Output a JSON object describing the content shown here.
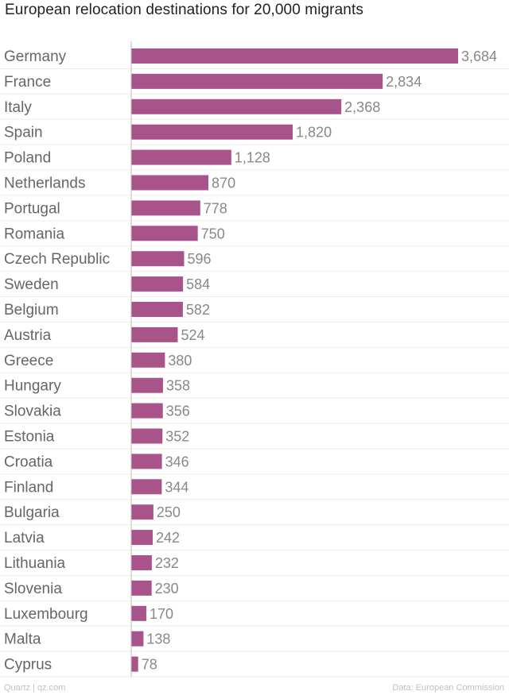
{
  "chart_data": {
    "type": "bar",
    "orientation": "horizontal",
    "title": "European relocation destinations for 20,000 migrants",
    "xlabel": "",
    "ylabel": "",
    "xlim": [
      0,
      3684
    ],
    "grid": true,
    "bar_color": "#a8538a",
    "categories": [
      "Germany",
      "France",
      "Italy",
      "Spain",
      "Poland",
      "Netherlands",
      "Portugal",
      "Romania",
      "Czech Republic",
      "Sweden",
      "Belgium",
      "Austria",
      "Greece",
      "Hungary",
      "Slovakia",
      "Estonia",
      "Croatia",
      "Finland",
      "Bulgaria",
      "Latvia",
      "Lithuania",
      "Slovenia",
      "Luxembourg",
      "Malta",
      "Cyprus"
    ],
    "values": [
      3684,
      2834,
      2368,
      1820,
      1128,
      870,
      778,
      750,
      596,
      584,
      582,
      524,
      380,
      358,
      356,
      352,
      346,
      344,
      250,
      242,
      232,
      230,
      170,
      138,
      78
    ],
    "value_labels": [
      "3,684",
      "2,834",
      "2,368",
      "1,820",
      "1,128",
      "870",
      "778",
      "750",
      "596",
      "584",
      "582",
      "524",
      "380",
      "358",
      "356",
      "352",
      "346",
      "344",
      "250",
      "242",
      "232",
      "230",
      "170",
      "138",
      "78"
    ]
  },
  "footer": {
    "source_left": "Quartz | qz.com",
    "source_right": "Data: European Commission"
  }
}
